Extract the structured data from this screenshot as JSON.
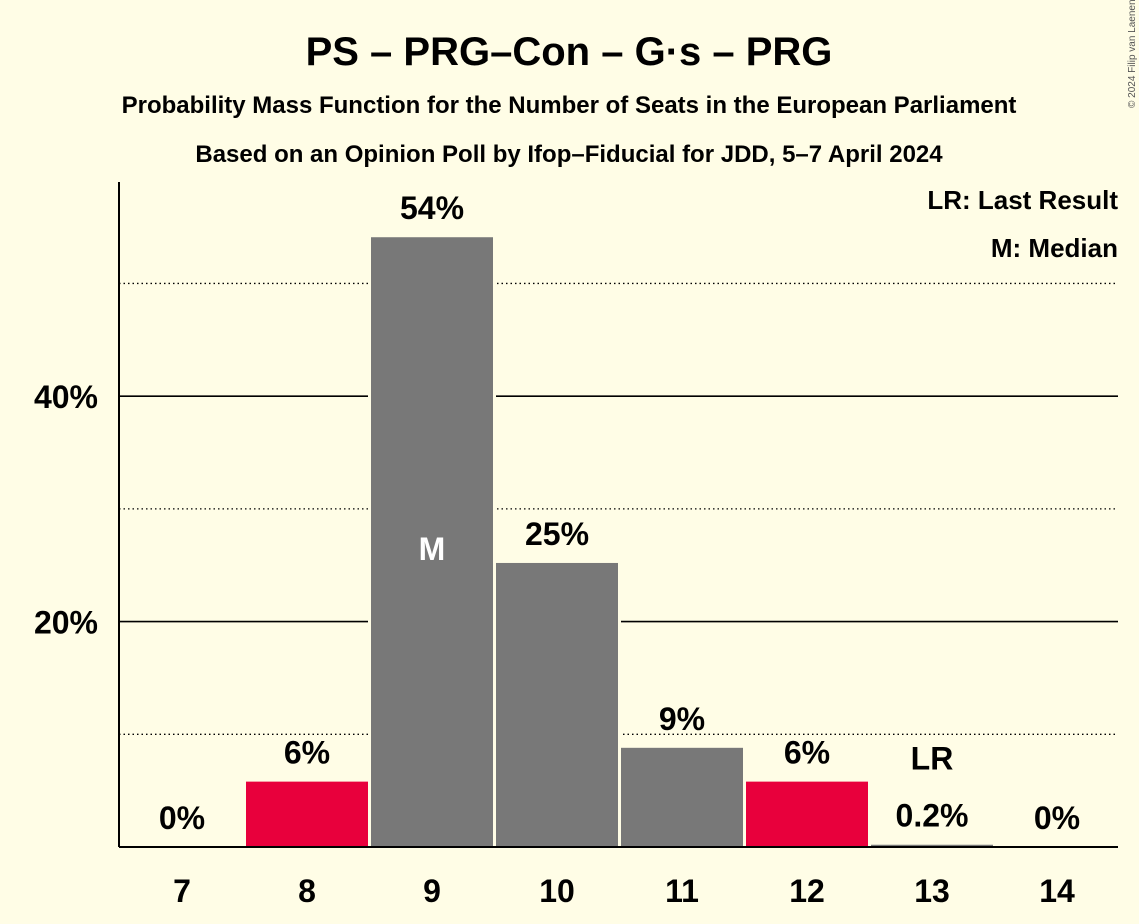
{
  "title": "PS – PRG–Con – G·s – PRG",
  "subtitle1": "Probability Mass Function for the Number of Seats in the European Parliament",
  "subtitle2": "Based on an Opinion Poll by Ifop–Fiducial for JDD, 5–7 April 2024",
  "legend": {
    "last_result": "LR: Last Result",
    "median": "M: Median"
  },
  "copyright": "© 2024 Filip van Laenen",
  "colors": {
    "background": "#fffde6",
    "default_bar": "#787878",
    "highlight_bar": "#e8003c"
  },
  "chart_data": {
    "type": "bar",
    "categories": [
      "7",
      "8",
      "9",
      "10",
      "11",
      "12",
      "13",
      "14"
    ],
    "values": [
      0,
      5.8,
      54.1,
      25.2,
      8.8,
      5.8,
      0.2,
      0
    ],
    "labels": [
      "0%",
      "6%",
      "54%",
      "25%",
      "9%",
      "6%",
      "0.2%",
      "0%"
    ],
    "highlight": [
      false,
      true,
      false,
      false,
      false,
      true,
      false,
      false
    ],
    "ylim": [
      0,
      59
    ],
    "yticks": [
      {
        "value": 20,
        "label": "20%",
        "major": true
      },
      {
        "value": 40,
        "label": "40%",
        "major": true
      }
    ],
    "minor_gridlines": [
      10,
      30,
      50
    ],
    "median": {
      "category": "9",
      "label": "M"
    },
    "last_result": {
      "category": "13",
      "label": "LR"
    },
    "xlabel": "",
    "ylabel": ""
  }
}
